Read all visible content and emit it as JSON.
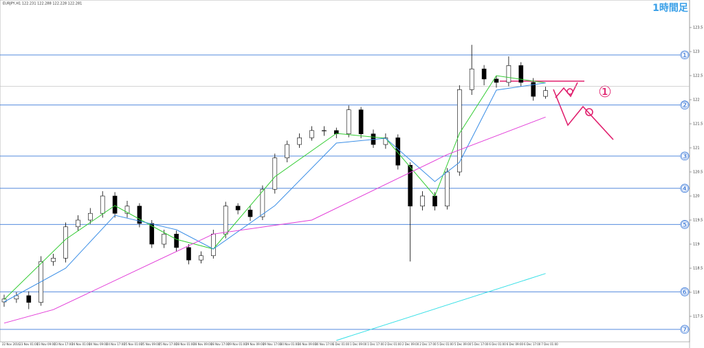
{
  "chart_data": {
    "type": "candlestick",
    "header": "EURJPY,H1  122.231 122.288 122.228 122.281",
    "title": "1時間足",
    "annotation": "①",
    "ylim": [
      117.0,
      124.0
    ],
    "yticks": [
      117.5,
      118.0,
      118.5,
      119.0,
      119.5,
      120.0,
      120.5,
      121.0,
      121.5,
      122.0,
      122.5,
      123.0,
      123.5
    ],
    "current_price": 122.28,
    "xticks": [
      "22 Nov 2016",
      "23 Nov 01:00",
      "23 Nov 09:00",
      "23 Nov 17:00",
      "24 Nov 01:00",
      "24 Nov 09:00",
      "24 Nov 17:00",
      "25 Nov 01:00",
      "25 Nov 09:00",
      "25 Nov 17:00",
      "28 Nov 01:00",
      "28 Nov 09:00",
      "28 Nov 17:00",
      "29 Nov 01:00",
      "29 Nov 09:00",
      "29 Nov 17:00",
      "30 Nov 01:00",
      "30 Nov 09:00",
      "30 Nov 17:00",
      "1 Dec 01:00",
      "1 Dec 09:00",
      "1 Dec 17:00",
      "2 Dec 01:00",
      "2 Dec 09:00",
      "2 Dec 17:00",
      "5 Dec 01:00",
      "5 Dec 09:00",
      "5 Dec 17:00",
      "6 Dec 01:00",
      "6 Dec 09:00",
      "6 Dec 17:00",
      "7 Dec 01:00"
    ],
    "open": [
      117.8,
      117.86,
      117.93,
      117.79,
      118.64,
      118.71,
      119.36,
      119.5,
      119.64,
      120.0,
      119.64,
      119.79,
      119.43,
      119.0,
      119.21,
      118.93,
      118.67,
      118.76,
      119.21,
      119.79,
      119.71,
      119.57,
      120.14,
      120.79,
      121.07,
      121.21,
      121.36,
      121.36,
      121.29,
      121.79,
      121.29,
      121.07,
      121.21,
      120.64,
      119.79,
      120.0,
      119.79,
      120.5,
      122.21,
      122.64,
      122.43,
      122.36,
      122.71,
      122.36,
      122.07
    ],
    "high": [
      117.95,
      118.0,
      118.02,
      118.75,
      118.8,
      119.45,
      119.6,
      119.75,
      120.1,
      120.08,
      119.9,
      119.85,
      119.5,
      119.3,
      119.28,
      119.0,
      118.85,
      119.3,
      119.88,
      119.85,
      119.8,
      120.22,
      120.88,
      121.15,
      121.3,
      121.45,
      121.45,
      121.42,
      121.88,
      121.85,
      121.38,
      121.3,
      121.28,
      120.7,
      120.1,
      120.08,
      120.58,
      122.3,
      123.14,
      122.72,
      122.5,
      122.9,
      122.78,
      122.45,
      122.27
    ],
    "low": [
      117.7,
      117.78,
      117.65,
      117.72,
      118.55,
      118.62,
      119.28,
      119.42,
      119.55,
      119.55,
      119.55,
      119.35,
      118.92,
      118.92,
      118.85,
      118.58,
      118.6,
      118.7,
      119.12,
      119.62,
      119.48,
      119.5,
      120.05,
      120.7,
      121.0,
      121.15,
      121.25,
      121.2,
      121.22,
      121.2,
      121.0,
      120.98,
      120.55,
      118.64,
      119.7,
      119.7,
      119.72,
      120.42,
      122.1,
      122.3,
      122.25,
      122.28,
      122.28,
      121.98,
      122.02
    ],
    "close": [
      117.86,
      117.93,
      117.79,
      118.64,
      118.71,
      119.36,
      119.5,
      119.64,
      120.0,
      119.64,
      119.79,
      119.43,
      119.0,
      119.21,
      118.93,
      118.67,
      118.76,
      119.21,
      119.79,
      119.71,
      119.57,
      120.14,
      120.79,
      121.07,
      121.21,
      121.36,
      121.36,
      121.29,
      121.79,
      121.29,
      121.07,
      121.21,
      120.64,
      119.79,
      120.0,
      119.79,
      120.5,
      122.21,
      122.64,
      122.43,
      122.36,
      122.71,
      122.36,
      122.07,
      122.19
    ],
    "series": [
      {
        "color": "#33cc33",
        "x": [
          0,
          5,
          9,
          14,
          17,
          22,
          27,
          31,
          35,
          37,
          40,
          44
        ],
        "values": [
          117.85,
          119.1,
          119.8,
          119.1,
          118.9,
          120.4,
          121.3,
          121.2,
          120.0,
          121.3,
          122.5,
          122.35
        ]
      },
      {
        "color": "#3a8ee6",
        "x": [
          0,
          5,
          9,
          14,
          17,
          22,
          27,
          31,
          35,
          37,
          40,
          44
        ],
        "values": [
          117.8,
          118.5,
          119.6,
          119.3,
          118.9,
          119.8,
          121.1,
          121.2,
          120.3,
          120.7,
          122.2,
          122.35
        ]
      },
      {
        "color": "#e23bd8",
        "x": [
          0,
          4,
          17,
          25,
          36,
          44
        ],
        "values": [
          117.36,
          117.64,
          119.21,
          119.5,
          120.86,
          121.64
        ]
      },
      {
        "color": "#33dfe6",
        "x": [
          27,
          44
        ],
        "values": [
          117.0,
          118.39
        ]
      }
    ],
    "levels": [
      {
        "label": "①",
        "value": 122.93
      },
      {
        "label": "②",
        "value": 121.89
      },
      {
        "label": "③",
        "value": 120.83
      },
      {
        "label": "④",
        "value": 120.16
      },
      {
        "label": "⑤",
        "value": 119.41
      },
      {
        "label": "⑥",
        "value": 118.01
      },
      {
        "label": "⑦",
        "value": 117.23
      }
    ]
  }
}
